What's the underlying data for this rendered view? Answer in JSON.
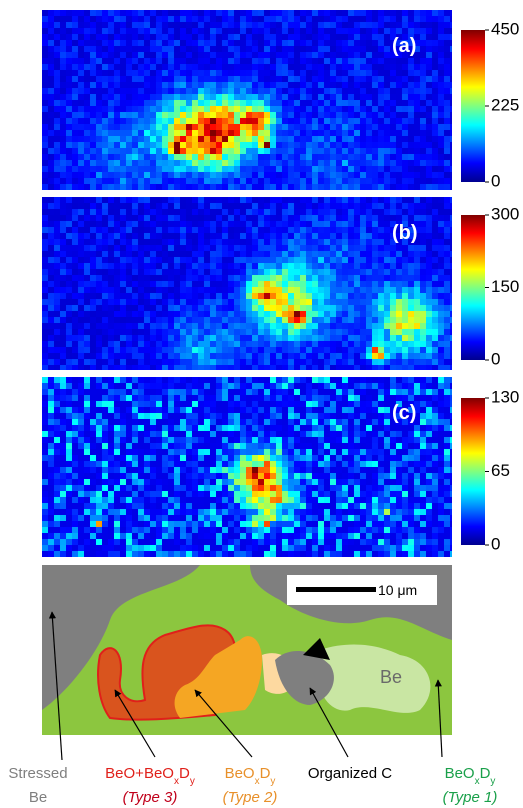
{
  "panels": [
    {
      "label": "(a)",
      "colorbar": {
        "lim": [
          0,
          450
        ],
        "ticks": [
          0,
          225,
          450
        ]
      }
    },
    {
      "label": "(b)",
      "colorbar": {
        "lim": [
          0,
          300
        ],
        "ticks": [
          0,
          150,
          300
        ]
      }
    },
    {
      "label": "(c)",
      "colorbar": {
        "lim": [
          0,
          130
        ],
        "ticks": [
          0,
          65,
          130
        ]
      }
    }
  ],
  "schematic": {
    "scale_bar": "10 μm",
    "region_label": "Be",
    "legend": [
      {
        "color": "#7f7f7f",
        "lines": [
          {
            "segments": [
              {
                "text": "Stressed"
              }
            ]
          },
          {
            "segments": [
              {
                "text": "Be"
              }
            ]
          }
        ]
      },
      {
        "color": "#e0201a",
        "lines": [
          {
            "segments": [
              {
                "text": "BeO+BeO"
              },
              {
                "text": "x",
                "sub": true
              },
              {
                "text": "D"
              },
              {
                "text": "y",
                "sub": true
              }
            ]
          },
          {
            "segments": [
              {
                "text": "(Type 3)"
              }
            ],
            "italic": true,
            "color": "#c0001a"
          }
        ]
      },
      {
        "color": "#e8902a",
        "lines": [
          {
            "segments": [
              {
                "text": "BeO"
              },
              {
                "text": "x",
                "sub": true
              },
              {
                "text": "D"
              },
              {
                "text": "y",
                "sub": true
              }
            ]
          },
          {
            "segments": [
              {
                "text": "(Type 2)"
              }
            ],
            "italic": true
          }
        ]
      },
      {
        "color": "#000000",
        "lines": [
          {
            "segments": [
              {
                "text": "Organized C"
              }
            ]
          }
        ]
      },
      {
        "color": "#1aa04a",
        "lines": [
          {
            "segments": [
              {
                "text": "BeO"
              },
              {
                "text": "x",
                "sub": true
              },
              {
                "text": "D"
              },
              {
                "text": "y",
                "sub": true
              }
            ]
          },
          {
            "segments": [
              {
                "text": "(Type 1)"
              }
            ],
            "italic": true
          }
        ]
      }
    ]
  }
}
